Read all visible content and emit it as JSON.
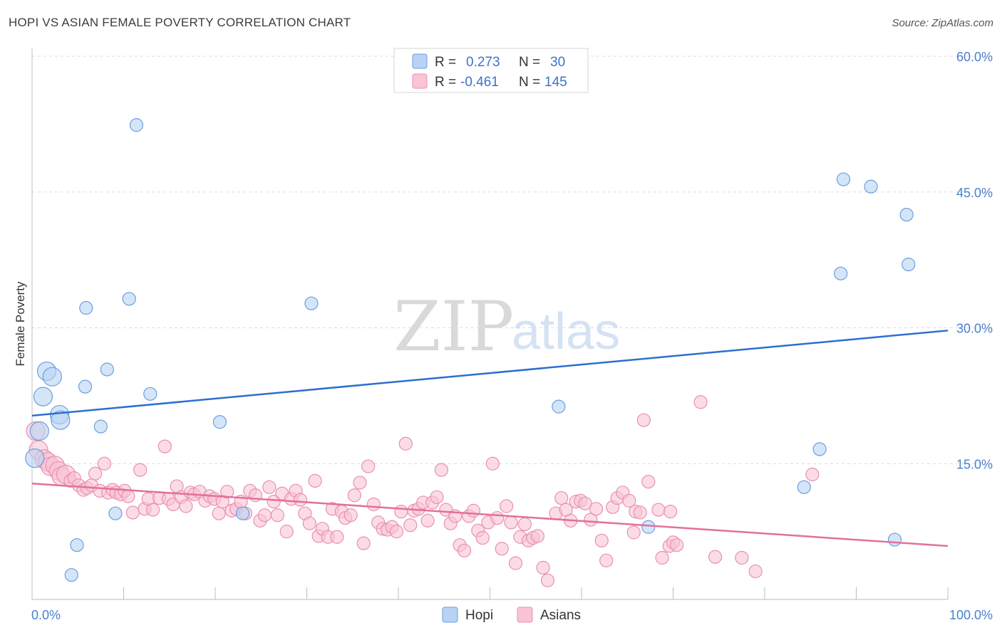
{
  "title": "HOPI VS ASIAN FEMALE POVERTY CORRELATION CHART",
  "source": "Source: ZipAtlas.com",
  "watermark": {
    "part1": "ZIP",
    "part2": "atlas"
  },
  "colors": {
    "hopi_fill": "#b8d3f3",
    "hopi_stroke": "#6a9ee0",
    "hopi_line": "#2c6fcf",
    "asian_fill": "#f8c4d6",
    "asian_stroke": "#ea8fb0",
    "asian_line": "#e2709a",
    "accent_text": "#3b73c8"
  },
  "legend": {
    "rows": [
      {
        "r_label": "R =",
        "r_value": "0.273",
        "n_label": "N =",
        "n_value": "30",
        "series": "hopi"
      },
      {
        "r_label": "R =",
        "r_value": "-0.461",
        "n_label": "N =",
        "n_value": "145",
        "series": "asian"
      }
    ]
  },
  "chart_data": {
    "type": "scatter",
    "title": "HOPI VS ASIAN FEMALE POVERTY CORRELATION CHART",
    "xlabel": "",
    "ylabel": "Female Poverty",
    "xlim": [
      0,
      100
    ],
    "ylim": [
      0,
      65
    ],
    "x_tick_labels": [
      "0.0%",
      "100.0%"
    ],
    "y_ticks": [
      15,
      30,
      45,
      60
    ],
    "y_tick_labels": [
      "15.0%",
      "30.0%",
      "45.0%",
      "60.0%"
    ],
    "grid": true,
    "legend_position": "top-center",
    "series": [
      {
        "name": "Hopi",
        "trend": {
          "x": [
            0,
            100
          ],
          "y": [
            20.3,
            29.7
          ]
        },
        "points": [
          [
            0.3,
            15.6
          ],
          [
            0.8,
            18.6
          ],
          [
            1.2,
            22.4
          ],
          [
            1.6,
            25.2
          ],
          [
            2.2,
            24.6
          ],
          [
            3.0,
            20.4
          ],
          [
            3.1,
            19.8
          ],
          [
            4.3,
            2.7
          ],
          [
            4.9,
            6.0
          ],
          [
            5.8,
            23.5
          ],
          [
            5.9,
            32.2
          ],
          [
            7.5,
            19.1
          ],
          [
            8.2,
            25.4
          ],
          [
            9.1,
            9.5
          ],
          [
            10.6,
            33.2
          ],
          [
            11.4,
            52.4
          ],
          [
            12.9,
            22.7
          ],
          [
            20.5,
            19.6
          ],
          [
            23.0,
            9.5
          ],
          [
            30.5,
            32.7
          ],
          [
            57.5,
            21.3
          ],
          [
            67.3,
            8.0
          ],
          [
            84.3,
            12.4
          ],
          [
            86.0,
            16.6
          ],
          [
            88.3,
            36.0
          ],
          [
            88.6,
            46.4
          ],
          [
            91.6,
            45.6
          ],
          [
            94.2,
            6.6
          ],
          [
            95.5,
            42.5
          ],
          [
            95.7,
            37.0
          ]
        ]
      },
      {
        "name": "Asians",
        "trend": {
          "x": [
            0,
            100
          ],
          "y": [
            12.8,
            5.9
          ]
        },
        "points": [
          [
            0.4,
            18.6
          ],
          [
            0.7,
            16.5
          ],
          [
            1.3,
            15.5
          ],
          [
            1.7,
            15.2
          ],
          [
            2.0,
            14.7
          ],
          [
            2.5,
            14.8
          ],
          [
            2.9,
            14.2
          ],
          [
            3.2,
            13.6
          ],
          [
            3.7,
            13.8
          ],
          [
            4.2,
            13.1
          ],
          [
            4.6,
            13.4
          ],
          [
            5.1,
            12.6
          ],
          [
            5.6,
            12.1
          ],
          [
            6.0,
            12.3
          ],
          [
            6.5,
            12.6
          ],
          [
            6.9,
            13.9
          ],
          [
            7.4,
            12.0
          ],
          [
            7.9,
            15.0
          ],
          [
            8.3,
            11.8
          ],
          [
            8.8,
            12.1
          ],
          [
            9.2,
            11.8
          ],
          [
            9.7,
            11.6
          ],
          [
            10.1,
            12.0
          ],
          [
            10.5,
            11.4
          ],
          [
            11.0,
            9.6
          ],
          [
            11.8,
            14.3
          ],
          [
            12.3,
            10.0
          ],
          [
            12.7,
            11.1
          ],
          [
            13.2,
            9.9
          ],
          [
            13.9,
            11.2
          ],
          [
            14.5,
            16.9
          ],
          [
            14.9,
            11.1
          ],
          [
            15.4,
            10.5
          ],
          [
            15.8,
            12.5
          ],
          [
            16.3,
            11.3
          ],
          [
            16.8,
            10.3
          ],
          [
            17.3,
            11.8
          ],
          [
            17.7,
            11.6
          ],
          [
            18.3,
            11.9
          ],
          [
            18.9,
            10.9
          ],
          [
            19.4,
            11.4
          ],
          [
            19.9,
            11.1
          ],
          [
            20.4,
            9.5
          ],
          [
            20.8,
            10.8
          ],
          [
            21.3,
            11.9
          ],
          [
            21.8,
            9.8
          ],
          [
            22.3,
            10.0
          ],
          [
            22.8,
            10.8
          ],
          [
            23.3,
            9.5
          ],
          [
            23.8,
            12.0
          ],
          [
            24.4,
            11.5
          ],
          [
            24.9,
            8.7
          ],
          [
            25.4,
            9.3
          ],
          [
            25.9,
            12.4
          ],
          [
            26.4,
            10.8
          ],
          [
            26.8,
            9.3
          ],
          [
            27.3,
            11.7
          ],
          [
            27.8,
            7.5
          ],
          [
            28.3,
            11.1
          ],
          [
            28.8,
            12.0
          ],
          [
            29.3,
            11.0
          ],
          [
            29.8,
            9.5
          ],
          [
            30.3,
            8.4
          ],
          [
            30.9,
            13.1
          ],
          [
            31.3,
            7.0
          ],
          [
            31.7,
            7.8
          ],
          [
            32.3,
            6.9
          ],
          [
            32.8,
            10.0
          ],
          [
            33.3,
            6.9
          ],
          [
            33.8,
            9.7
          ],
          [
            34.2,
            9.0
          ],
          [
            34.8,
            9.3
          ],
          [
            35.2,
            11.5
          ],
          [
            35.8,
            12.9
          ],
          [
            36.2,
            6.2
          ],
          [
            36.7,
            14.7
          ],
          [
            37.3,
            10.5
          ],
          [
            37.8,
            8.5
          ],
          [
            38.3,
            7.8
          ],
          [
            38.8,
            7.7
          ],
          [
            39.3,
            8.0
          ],
          [
            39.8,
            7.5
          ],
          [
            40.3,
            9.7
          ],
          [
            40.8,
            17.2
          ],
          [
            41.3,
            8.2
          ],
          [
            41.7,
            9.8
          ],
          [
            42.2,
            10.0
          ],
          [
            42.7,
            10.7
          ],
          [
            43.2,
            8.7
          ],
          [
            43.7,
            10.7
          ],
          [
            44.2,
            11.3
          ],
          [
            44.7,
            14.3
          ],
          [
            45.2,
            9.9
          ],
          [
            45.7,
            8.4
          ],
          [
            46.2,
            9.2
          ],
          [
            46.7,
            6.0
          ],
          [
            47.2,
            5.4
          ],
          [
            47.7,
            9.2
          ],
          [
            48.2,
            9.8
          ],
          [
            48.7,
            7.6
          ],
          [
            49.2,
            6.8
          ],
          [
            49.8,
            8.5
          ],
          [
            50.3,
            15.0
          ],
          [
            50.8,
            9.0
          ],
          [
            51.3,
            5.6
          ],
          [
            51.8,
            10.3
          ],
          [
            52.3,
            8.5
          ],
          [
            52.8,
            4.0
          ],
          [
            53.3,
            6.9
          ],
          [
            53.8,
            8.3
          ],
          [
            54.2,
            6.5
          ],
          [
            54.7,
            6.8
          ],
          [
            55.2,
            7.0
          ],
          [
            55.8,
            3.5
          ],
          [
            56.3,
            2.1
          ],
          [
            57.2,
            9.5
          ],
          [
            57.8,
            11.2
          ],
          [
            58.3,
            9.9
          ],
          [
            58.8,
            8.7
          ],
          [
            59.4,
            10.8
          ],
          [
            59.9,
            10.9
          ],
          [
            60.4,
            10.6
          ],
          [
            61.0,
            8.8
          ],
          [
            61.6,
            10.0
          ],
          [
            62.2,
            6.5
          ],
          [
            62.7,
            4.3
          ],
          [
            63.4,
            10.2
          ],
          [
            63.9,
            11.2
          ],
          [
            64.5,
            11.8
          ],
          [
            65.2,
            10.9
          ],
          [
            65.7,
            7.4
          ],
          [
            65.9,
            9.7
          ],
          [
            66.4,
            9.6
          ],
          [
            66.8,
            19.8
          ],
          [
            67.3,
            13.0
          ],
          [
            68.4,
            9.9
          ],
          [
            68.8,
            4.6
          ],
          [
            69.7,
            9.7
          ],
          [
            69.6,
            5.9
          ],
          [
            70.0,
            6.3
          ],
          [
            70.4,
            6.0
          ],
          [
            73.0,
            21.8
          ],
          [
            74.6,
            4.7
          ],
          [
            77.5,
            4.6
          ],
          [
            79.0,
            3.1
          ],
          [
            85.2,
            13.8
          ]
        ]
      }
    ]
  },
  "bottom_legend": {
    "items": [
      "Hopi",
      "Asians"
    ]
  }
}
